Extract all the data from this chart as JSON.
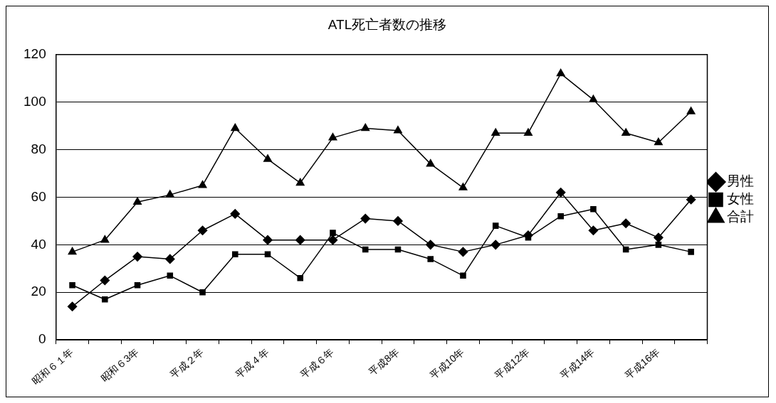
{
  "chart_data": {
    "type": "line",
    "title": "ATL死亡者数の推移",
    "categories": [
      "昭和６１年",
      null,
      "昭和６3年",
      null,
      "平成２年",
      null,
      "平成４年",
      null,
      "平成６年",
      null,
      "平成8年",
      null,
      "平成10年",
      null,
      "平成12年",
      null,
      "平成14年",
      null,
      "平成16年",
      null
    ],
    "series": [
      {
        "name": "男性",
        "color": "#000000",
        "marker": "diamond",
        "values": [
          14,
          25,
          35,
          34,
          46,
          53,
          42,
          42,
          42,
          51,
          50,
          40,
          37,
          40,
          44,
          62,
          46,
          49,
          43,
          59
        ]
      },
      {
        "name": "女性",
        "color": "#000000",
        "marker": "square",
        "values": [
          23,
          17,
          23,
          27,
          20,
          36,
          36,
          26,
          45,
          38,
          38,
          34,
          27,
          48,
          43,
          52,
          55,
          38,
          40,
          37
        ]
      },
      {
        "name": "合計",
        "color": "#000000",
        "marker": "triangle",
        "values": [
          37,
          42,
          58,
          61,
          65,
          89,
          76,
          66,
          85,
          89,
          88,
          74,
          64,
          87,
          87,
          112,
          101,
          87,
          83,
          96
        ]
      }
    ],
    "ylim": [
      0,
      120
    ],
    "yticks": [
      0,
      20,
      40,
      60,
      80,
      100,
      120
    ],
    "grid": "y",
    "legend": "right",
    "line_style": "solid"
  }
}
